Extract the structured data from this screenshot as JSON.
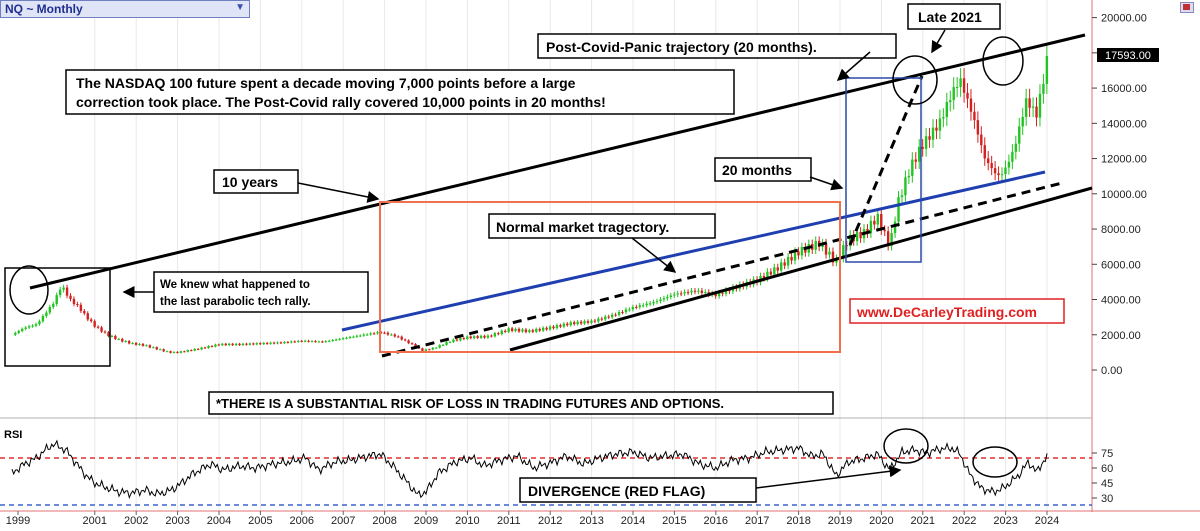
{
  "symbol_selector": {
    "label": "NQ ~ Monthly",
    "chevron_icon": "chevron-down-icon"
  },
  "flag_icon": "flag-icon",
  "price_axis": {
    "ticks": [
      "20000.00",
      "18000.00",
      "16000.00",
      "14000.00",
      "12000.00",
      "10000.00",
      "8000.00",
      "6000.00",
      "4000.00",
      "2000.00",
      "0.00"
    ],
    "last_price": "17593.00"
  },
  "rsi": {
    "label": "RSI",
    "ticks": [
      "75",
      "60",
      "45",
      "30"
    ],
    "upper_band": 70,
    "lower_band": 30
  },
  "x_axis": {
    "years": [
      "1999",
      "2001",
      "2002",
      "2003",
      "2004",
      "2005",
      "2006",
      "2007",
      "2008",
      "2009",
      "2010",
      "2011",
      "2012",
      "2013",
      "2014",
      "2015",
      "2016",
      "2017",
      "2018",
      "2019",
      "2020",
      "2021",
      "2022",
      "2023",
      "2024"
    ]
  },
  "annotations": {
    "headline": {
      "line1": "The NASDAQ 100 future spent a decade moving 7,000 points before a large",
      "line2": "correction took place. The Post-Covid rally covered 10,000 points in 20 months!"
    },
    "post_covid": "Post-Covid-Panic trajectory (20 months).",
    "late_2021": "Late 2021",
    "ten_years": "10 years",
    "twenty_months": "20 months",
    "parabolic": {
      "line1": "We knew what happened to",
      "line2": "the last parabolic tech rally."
    },
    "normal": "Normal market tragectory.",
    "website": "www.DeCarleyTrading.com",
    "risk": "*THERE IS A SUBSTANTIAL RISK OF LOSS IN TRADING FUTURES AND OPTIONS.",
    "divergence": "DIVERGENCE (RED FLAG)"
  },
  "colors": {
    "up": "#21c421",
    "down": "#d42020",
    "trend_black": "#000000",
    "trend_blue": "#1f3fb0",
    "box_orange": "#f07050",
    "box_blue": "#2a4aaa",
    "website_red": "#e02020",
    "rsi_line": "#000000",
    "band_red": "#e03030",
    "band_blue": "#3a60d0"
  },
  "chart_data": [
    {
      "type": "candlestick",
      "title": "NQ ~ Monthly",
      "x_range": [
        1999,
        2024
      ],
      "ylim": [
        0,
        20000
      ],
      "last_value": 17593,
      "series": [
        {
          "values": [
            [
              1999.0,
              2000
            ],
            [
              1999.3,
              2400
            ],
            [
              1999.6,
              2600
            ],
            [
              1999.8,
              3200
            ],
            [
              2000.0,
              3800
            ],
            [
              2000.2,
              4800
            ],
            [
              2000.4,
              4000
            ],
            [
              2000.6,
              3600
            ],
            [
              2000.8,
              3000
            ],
            [
              2001.0,
              2500
            ],
            [
              2001.3,
              2000
            ],
            [
              2001.6,
              1700
            ],
            [
              2001.9,
              1500
            ],
            [
              2002.2,
              1400
            ],
            [
              2002.5,
              1200
            ],
            [
              2002.8,
              1000
            ],
            [
              2003.0,
              1000
            ],
            [
              2003.5,
              1200
            ],
            [
              2004.0,
              1450
            ],
            [
              2004.5,
              1450
            ],
            [
              2005.0,
              1500
            ],
            [
              2005.5,
              1550
            ],
            [
              2006.0,
              1650
            ],
            [
              2006.5,
              1600
            ],
            [
              2007.0,
              1800
            ],
            [
              2007.5,
              2000
            ],
            [
              2007.9,
              2150
            ],
            [
              2008.3,
              1900
            ],
            [
              2008.7,
              1400
            ],
            [
              2008.9,
              1100
            ],
            [
              2009.2,
              1250
            ],
            [
              2009.6,
              1650
            ],
            [
              2010.0,
              1850
            ],
            [
              2010.5,
              1900
            ],
            [
              2011.0,
              2300
            ],
            [
              2011.5,
              2200
            ],
            [
              2012.0,
              2400
            ],
            [
              2012.5,
              2650
            ],
            [
              2013.0,
              2750
            ],
            [
              2013.5,
              3100
            ],
            [
              2014.0,
              3550
            ],
            [
              2014.5,
              3850
            ],
            [
              2015.0,
              4300
            ],
            [
              2015.5,
              4500
            ],
            [
              2016.0,
              4250
            ],
            [
              2016.5,
              4700
            ],
            [
              2017.0,
              5100
            ],
            [
              2017.5,
              5800
            ],
            [
              2018.0,
              6700
            ],
            [
              2018.5,
              7200
            ],
            [
              2018.9,
              6100
            ],
            [
              2019.2,
              7400
            ],
            [
              2019.6,
              7800
            ],
            [
              2019.9,
              8700
            ],
            [
              2020.2,
              7000
            ],
            [
              2020.4,
              9500
            ],
            [
              2020.7,
              11500
            ],
            [
              2021.0,
              12800
            ],
            [
              2021.4,
              14000
            ],
            [
              2021.7,
              15700
            ],
            [
              2021.9,
              16500
            ],
            [
              2022.2,
              14500
            ],
            [
              2022.5,
              12000
            ],
            [
              2022.8,
              11000
            ],
            [
              2022.95,
              11200
            ],
            [
              2023.2,
              12500
            ],
            [
              2023.5,
              15300
            ],
            [
              2023.75,
              14500
            ],
            [
              2023.9,
              16300
            ],
            [
              2024.0,
              17593
            ]
          ]
        }
      ]
    },
    {
      "type": "line",
      "title": "RSI",
      "ylim": [
        20,
        90
      ],
      "bands": [
        70,
        30
      ],
      "x_range": [
        1999,
        2024
      ],
      "series": [
        {
          "values": [
            [
              1999.0,
              55
            ],
            [
              1999.3,
              64
            ],
            [
              1999.6,
              70
            ],
            [
              1999.8,
              78
            ],
            [
              2000.0,
              84
            ],
            [
              2000.3,
              78
            ],
            [
              2000.6,
              62
            ],
            [
              2000.8,
              52
            ],
            [
              2001.0,
              45
            ],
            [
              2001.3,
              40
            ],
            [
              2001.6,
              36
            ],
            [
              2001.9,
              35
            ],
            [
              2002.2,
              38
            ],
            [
              2002.5,
              34
            ],
            [
              2002.8,
              37
            ],
            [
              2003.0,
              42
            ],
            [
              2003.4,
              55
            ],
            [
              2003.8,
              64
            ],
            [
              2004.1,
              58
            ],
            [
              2004.5,
              62
            ],
            [
              2004.9,
              60
            ],
            [
              2005.3,
              64
            ],
            [
              2005.7,
              66
            ],
            [
              2006.1,
              70
            ],
            [
              2006.4,
              58
            ],
            [
              2006.8,
              66
            ],
            [
              2007.2,
              68
            ],
            [
              2007.6,
              72
            ],
            [
              2007.9,
              74
            ],
            [
              2008.2,
              62
            ],
            [
              2008.5,
              48
            ],
            [
              2008.8,
              33
            ],
            [
              2009.0,
              36
            ],
            [
              2009.3,
              55
            ],
            [
              2009.7,
              66
            ],
            [
              2010.1,
              70
            ],
            [
              2010.4,
              62
            ],
            [
              2010.8,
              68
            ],
            [
              2011.2,
              72
            ],
            [
              2011.6,
              60
            ],
            [
              2012.0,
              65
            ],
            [
              2012.4,
              72
            ],
            [
              2012.8,
              64
            ],
            [
              2013.2,
              70
            ],
            [
              2013.6,
              74
            ],
            [
              2014.0,
              76
            ],
            [
              2014.4,
              70
            ],
            [
              2014.8,
              72
            ],
            [
              2015.2,
              74
            ],
            [
              2015.6,
              64
            ],
            [
              2016.0,
              60
            ],
            [
              2016.4,
              68
            ],
            [
              2016.8,
              70
            ],
            [
              2017.2,
              76
            ],
            [
              2017.6,
              78
            ],
            [
              2018.0,
              80
            ],
            [
              2018.3,
              72
            ],
            [
              2018.6,
              74
            ],
            [
              2018.9,
              52
            ],
            [
              2019.2,
              66
            ],
            [
              2019.6,
              70
            ],
            [
              2019.9,
              74
            ],
            [
              2020.2,
              58
            ],
            [
              2020.5,
              76
            ],
            [
              2020.8,
              78
            ],
            [
              2021.1,
              75
            ],
            [
              2021.4,
              79
            ],
            [
              2021.7,
              80
            ],
            [
              2021.9,
              74
            ],
            [
              2022.1,
              56
            ],
            [
              2022.4,
              40
            ],
            [
              2022.7,
              36
            ],
            [
              2022.95,
              40
            ],
            [
              2023.3,
              52
            ],
            [
              2023.55,
              66
            ],
            [
              2023.75,
              56
            ],
            [
              2023.9,
              66
            ],
            [
              2024.0,
              71
            ]
          ]
        }
      ]
    }
  ]
}
